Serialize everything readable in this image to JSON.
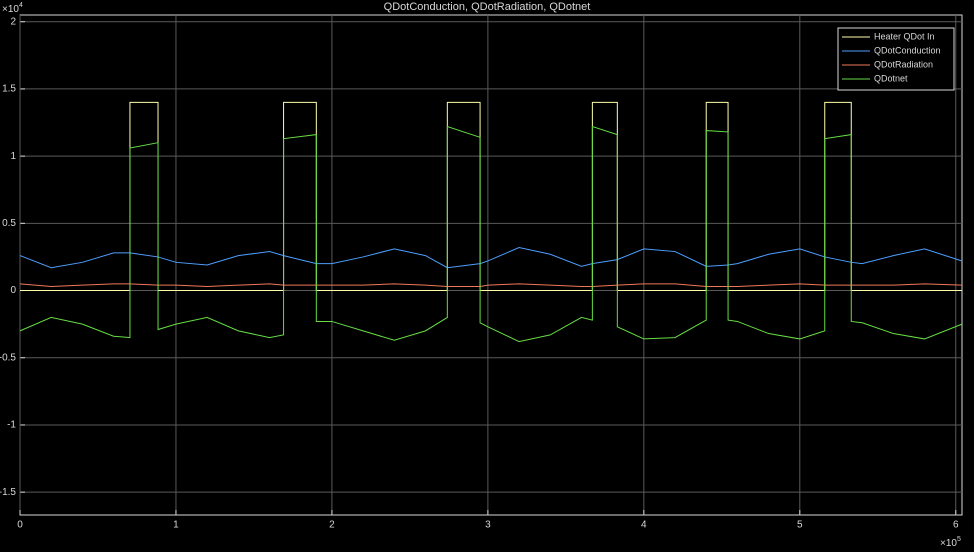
{
  "chart_data": {
    "type": "line",
    "title": "QDotConduction, QDotRadiation, QDotnet",
    "x_multiplier": {
      "base": "×10",
      "exponent": "5"
    },
    "y_multiplier": {
      "base": "×10",
      "exponent": "4"
    },
    "xlim": [
      0,
      6.04
    ],
    "ylim": [
      -1.67,
      2.05
    ],
    "xticks": [
      0,
      1,
      2,
      3,
      4,
      5,
      6
    ],
    "yticks": [
      -1.5,
      -1,
      -0.5,
      0,
      0.5,
      1,
      1.5,
      2
    ],
    "grid": true,
    "legend": "top-right",
    "x": [
      0,
      0.2,
      0.4,
      0.6,
      0.705,
      0.705,
      0.885,
      0.885,
      1.0,
      1.2,
      1.4,
      1.6,
      1.69,
      1.69,
      1.9,
      1.9,
      2.0,
      2.2,
      2.4,
      2.6,
      2.74,
      2.74,
      2.95,
      2.95,
      3.0,
      3.2,
      3.4,
      3.6,
      3.67,
      3.67,
      3.83,
      3.83,
      4.0,
      4.2,
      4.4,
      4.4,
      4.54,
      4.54,
      4.6,
      4.8,
      5.0,
      5.16,
      5.16,
      5.33,
      5.33,
      5.4,
      5.6,
      5.8,
      6.04
    ],
    "series": [
      {
        "name": "Heater QDot In",
        "color": "#ffffa8",
        "values": [
          0,
          0,
          0,
          0,
          0,
          1.4,
          1.4,
          0,
          0,
          0,
          0,
          0,
          0,
          1.4,
          1.4,
          0,
          0,
          0,
          0,
          0,
          0,
          1.4,
          1.4,
          0,
          0,
          0,
          0,
          0,
          0,
          1.4,
          1.4,
          0,
          0,
          0,
          0,
          1.4,
          1.4,
          0,
          0,
          0,
          0,
          0,
          1.4,
          1.4,
          0,
          0,
          0,
          0,
          0
        ]
      },
      {
        "name": "QDotConduction",
        "color": "#4d9fff",
        "values": [
          0.26,
          0.17,
          0.21,
          0.28,
          0.28,
          0.28,
          0.25,
          0.25,
          0.21,
          0.19,
          0.26,
          0.29,
          0.26,
          0.26,
          0.2,
          0.2,
          0.2,
          0.25,
          0.31,
          0.26,
          0.17,
          0.17,
          0.2,
          0.2,
          0.22,
          0.32,
          0.27,
          0.18,
          0.2,
          0.2,
          0.23,
          0.23,
          0.31,
          0.29,
          0.18,
          0.18,
          0.19,
          0.19,
          0.2,
          0.27,
          0.31,
          0.25,
          0.25,
          0.21,
          0.21,
          0.2,
          0.26,
          0.31,
          0.22
        ]
      },
      {
        "name": "QDotRadiation",
        "color": "#f0785a",
        "values": [
          0.05,
          0.03,
          0.04,
          0.05,
          0.05,
          0.05,
          0.04,
          0.04,
          0.04,
          0.03,
          0.04,
          0.05,
          0.04,
          0.04,
          0.04,
          0.04,
          0.04,
          0.04,
          0.05,
          0.04,
          0.03,
          0.03,
          0.03,
          0.03,
          0.04,
          0.05,
          0.04,
          0.03,
          0.03,
          0.03,
          0.04,
          0.04,
          0.05,
          0.05,
          0.03,
          0.03,
          0.03,
          0.03,
          0.03,
          0.04,
          0.05,
          0.04,
          0.04,
          0.04,
          0.04,
          0.04,
          0.04,
          0.05,
          0.04
        ]
      },
      {
        "name": "QDotnet",
        "color": "#66dd44",
        "values": [
          -0.3,
          -0.2,
          -0.25,
          -0.34,
          -0.35,
          1.06,
          1.1,
          -0.29,
          -0.25,
          -0.2,
          -0.3,
          -0.35,
          -0.33,
          1.13,
          1.16,
          -0.23,
          -0.23,
          -0.3,
          -0.37,
          -0.3,
          -0.2,
          1.22,
          1.14,
          -0.24,
          -0.27,
          -0.38,
          -0.33,
          -0.2,
          -0.22,
          1.22,
          1.16,
          -0.27,
          -0.36,
          -0.35,
          -0.22,
          1.19,
          1.18,
          -0.22,
          -0.23,
          -0.32,
          -0.36,
          -0.3,
          1.13,
          1.16,
          -0.23,
          -0.24,
          -0.32,
          -0.36,
          -0.25
        ]
      }
    ]
  }
}
